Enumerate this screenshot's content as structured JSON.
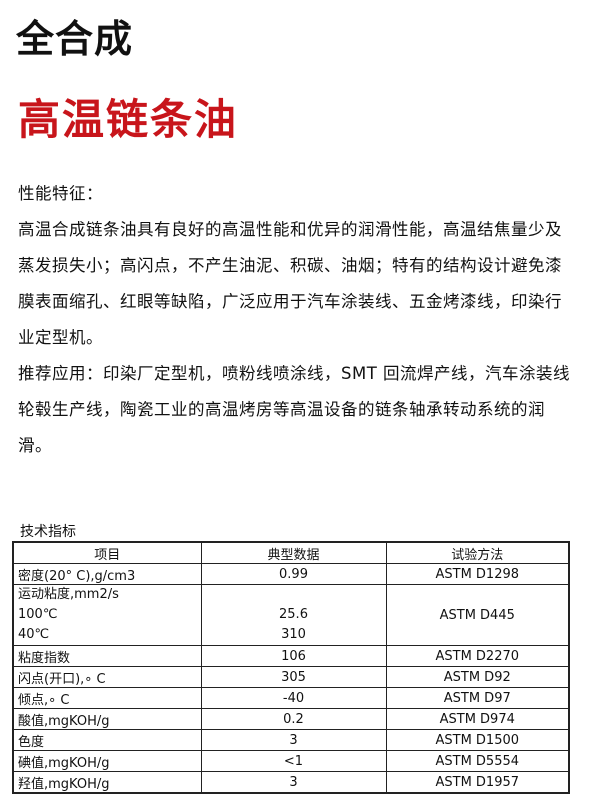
{
  "title": "全合成",
  "subtitle": "高温链条油",
  "paragraphs": [
    "性能特征：",
    "高温合成链条油具有良好的高温性能和优异的润滑性能，高温结焦量少及蒸发损失小；高闪点，不产生油泥、积碳、油烟；特有的结构设计避免漆膜表面缩孔、红眼等缺陷，广泛应用于汽车涂装线、五金烤漆线，印染行业定型机。",
    "推荐应用：印染厂定型机，喷粉线喷涂线，SMT 回流焊产线，汽车涂装线轮毂生产线，陶瓷工业的高温烤房等高温设备的链条轴承转动系统的润滑。"
  ],
  "table": {
    "caption": "技术指标",
    "headers": [
      "项目",
      "典型数据",
      "试验方法"
    ],
    "rows": [
      {
        "item": "密度(20° C),g/cm3",
        "value": "0.99",
        "method": "ASTM D1298"
      },
      {
        "item": "运动粘度,mm2/s",
        "sub": [
          "100℃",
          "40℃"
        ],
        "subvalues": [
          "25.6",
          "310"
        ],
        "method": "ASTM D445"
      },
      {
        "item": "粘度指数",
        "value": "106",
        "method": "ASTM D2270"
      },
      {
        "item": "闪点(开口),∘ C",
        "value": "305",
        "method": "ASTM D92"
      },
      {
        "item": "倾点,∘ C",
        "value": "-40",
        "method": "ASTM D97"
      },
      {
        "item": "酸值,mgKOH/g",
        "value": "0.2",
        "method": "ASTM D974"
      },
      {
        "item": "色度",
        "value": "3",
        "method": "ASTM D1500"
      },
      {
        "item": "碘值,mgKOH/g",
        "value": "<1",
        "method": "ASTM D5554"
      },
      {
        "item": "羟值,mgKOH/g",
        "value": "3",
        "method": "ASTM D1957"
      }
    ]
  }
}
